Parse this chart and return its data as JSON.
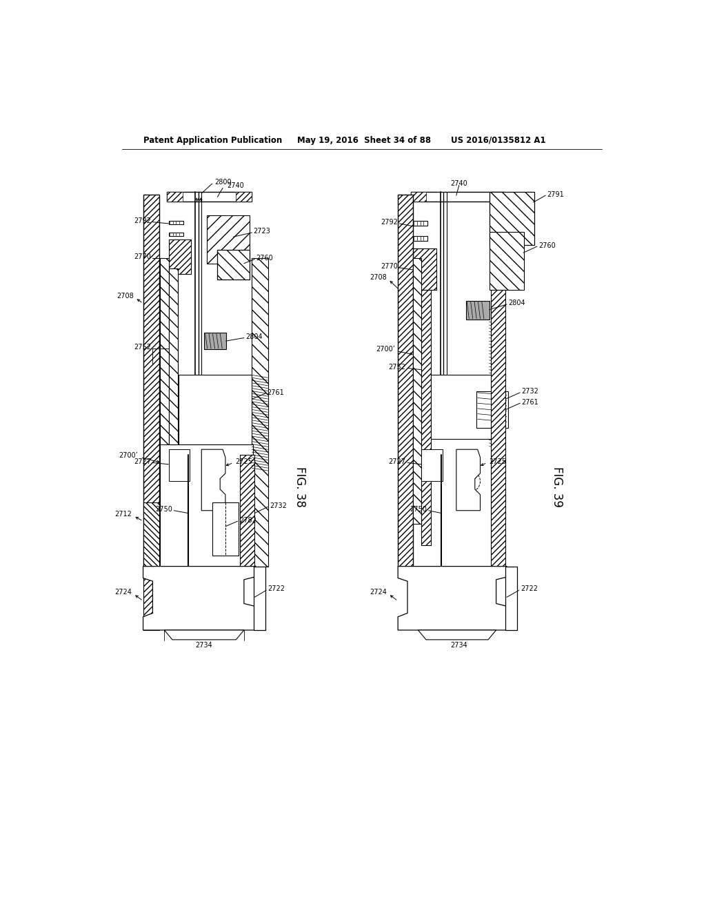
{
  "header_left": "Patent Application Publication",
  "header_mid": "May 19, 2016  Sheet 34 of 88",
  "header_right": "US 2016/0135812 A1",
  "fig38_label": "FIG. 38",
  "fig39_label": "FIG. 39",
  "bg_color": "#ffffff"
}
